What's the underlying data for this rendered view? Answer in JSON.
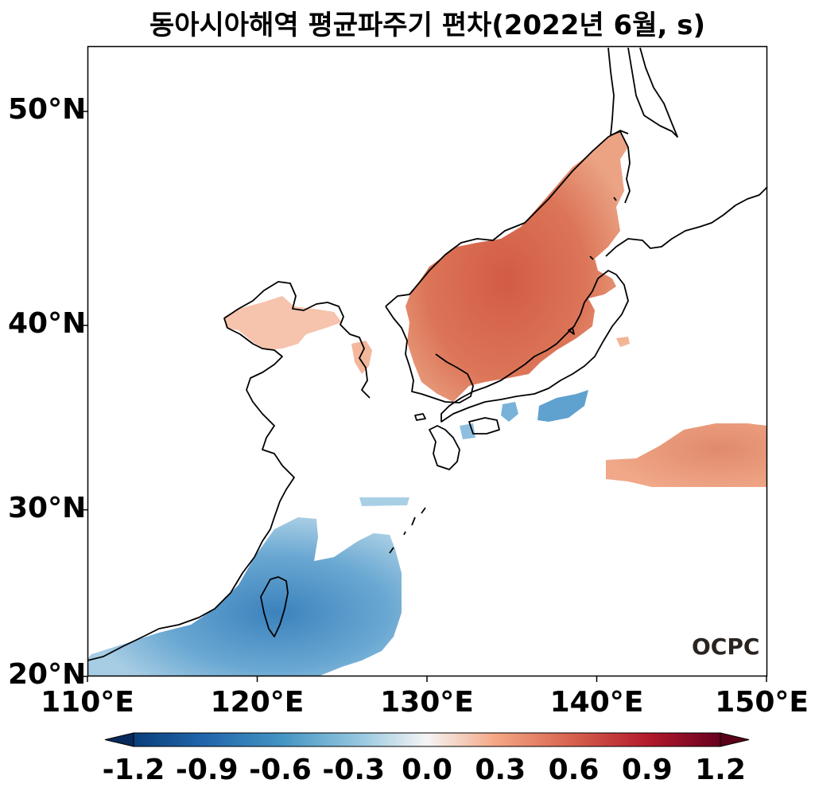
{
  "title": "동아시아해역 평균파주기 편차(2022년 6월, s)",
  "logo": "OCPC",
  "lat_ticks": [
    {
      "text": "50°N",
      "lat": 50
    },
    {
      "text": "40°N",
      "lat": 40
    },
    {
      "text": "30°N",
      "lat": 30
    },
    {
      "text": "20°N",
      "lat": 20
    }
  ],
  "lon_ticks": [
    {
      "text": "110°E",
      "lon": 110
    },
    {
      "text": "120°E",
      "lon": 120
    },
    {
      "text": "130°E",
      "lon": 130
    },
    {
      "text": "140°E",
      "lon": 140
    },
    {
      "text": "150°E",
      "lon": 150
    }
  ],
  "colorbar": {
    "min": -1.2,
    "max": 1.2,
    "extend": "both",
    "ticks": [
      "-1.2",
      "-0.9",
      "-0.6",
      "-0.3",
      "0.0",
      "0.3",
      "0.6",
      "0.9",
      "1.2"
    ],
    "colors": [
      "#08306b",
      "#2166ac",
      "#4393c3",
      "#92c5de",
      "#d1e5f0",
      "#f7f7f7",
      "#fddbc7",
      "#f4a582",
      "#d6604d",
      "#b2182b",
      "#67001f"
    ]
  },
  "map": {
    "lon_range": [
      110,
      150
    ],
    "lat_range": [
      20,
      53
    ],
    "anomaly_regions": [
      {
        "name": "East Sea / Sea of Japan",
        "sign": "positive",
        "level": 0.7
      },
      {
        "name": "Bohai Sea",
        "sign": "positive",
        "level": 0.3
      },
      {
        "name": "Pacific east of Japan",
        "sign": "positive",
        "level": 0.5
      },
      {
        "name": "East China Sea / Taiwan",
        "sign": "negative",
        "level": -0.6
      },
      {
        "name": "South of Japan coast",
        "sign": "negative",
        "level": -0.5
      }
    ]
  }
}
